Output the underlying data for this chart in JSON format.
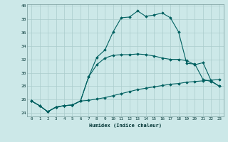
{
  "xlabel": "Humidex (Indice chaleur)",
  "background_color": "#cce8e8",
  "grid_color": "#aacccc",
  "line_color": "#006060",
  "xlim": [
    -0.5,
    23.5
  ],
  "ylim": [
    23.5,
    40.2
  ],
  "yticks": [
    24,
    26,
    28,
    30,
    32,
    34,
    36,
    38,
    40
  ],
  "xticks": [
    0,
    1,
    2,
    3,
    4,
    5,
    6,
    7,
    8,
    9,
    10,
    11,
    12,
    13,
    14,
    15,
    16,
    17,
    18,
    19,
    20,
    21,
    22,
    23
  ],
  "series1_x": [
    0,
    1,
    2,
    3,
    4,
    5,
    6,
    7,
    8,
    9,
    10,
    11,
    12,
    13,
    14,
    15,
    16,
    17,
    18,
    19,
    20,
    21,
    22,
    23
  ],
  "series1_y": [
    25.8,
    25.1,
    24.2,
    24.9,
    25.1,
    25.2,
    25.8,
    29.4,
    31.2,
    32.2,
    32.6,
    32.7,
    32.7,
    32.8,
    32.7,
    32.5,
    32.2,
    32.0,
    32.0,
    31.8,
    31.2,
    31.5,
    28.8,
    28.0
  ],
  "series2_x": [
    0,
    1,
    2,
    3,
    4,
    5,
    6,
    7,
    8,
    9,
    10,
    11,
    12,
    13,
    14,
    15,
    16,
    17,
    18,
    19,
    20,
    21,
    22,
    23
  ],
  "series2_y": [
    25.8,
    25.1,
    24.2,
    24.9,
    25.1,
    25.2,
    25.8,
    29.4,
    32.3,
    33.4,
    36.1,
    38.2,
    38.3,
    39.2,
    38.4,
    38.6,
    38.9,
    38.2,
    36.1,
    31.4,
    31.3,
    29.0,
    28.7,
    28.0
  ],
  "series3_x": [
    0,
    1,
    2,
    3,
    4,
    5,
    6,
    7,
    8,
    9,
    10,
    11,
    12,
    13,
    14,
    15,
    16,
    17,
    18,
    19,
    20,
    21,
    22,
    23
  ],
  "series3_y": [
    25.8,
    25.1,
    24.2,
    24.9,
    25.1,
    25.2,
    25.8,
    25.9,
    26.1,
    26.3,
    26.6,
    26.9,
    27.2,
    27.5,
    27.7,
    27.9,
    28.1,
    28.3,
    28.4,
    28.6,
    28.7,
    28.8,
    28.9,
    29.0
  ]
}
